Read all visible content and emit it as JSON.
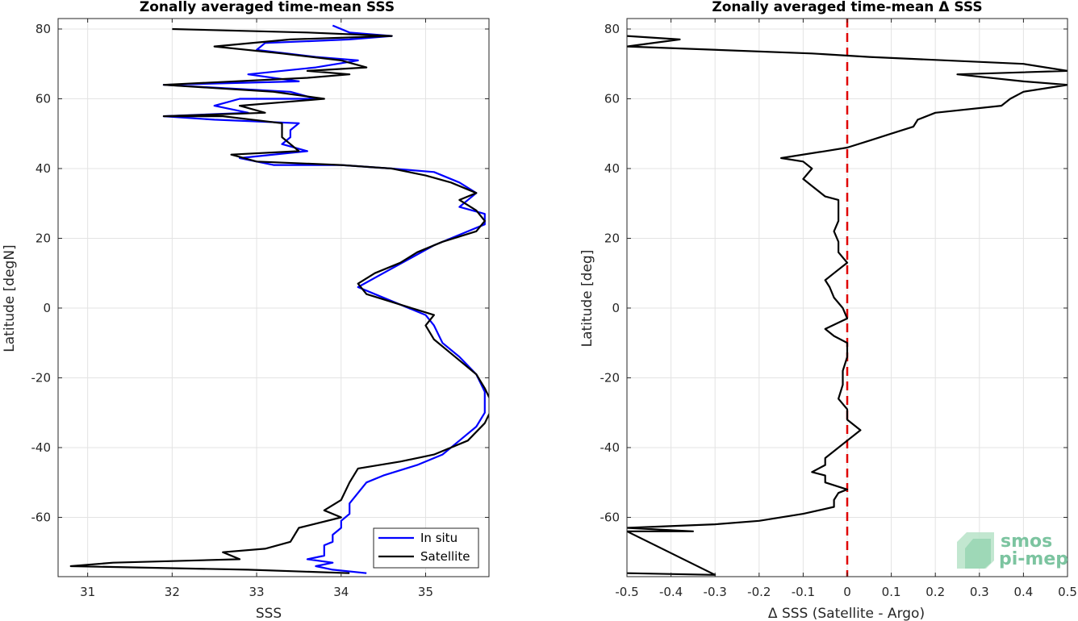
{
  "chart_data": [
    {
      "type": "line",
      "title": "Zonally averaged time-mean SSS",
      "xlabel": "SSS",
      "ylabel": "Latitude [degN]",
      "xlim": [
        30.65,
        35.75
      ],
      "ylim": [
        -77,
        83
      ],
      "xticks": [
        "31",
        "32",
        "33",
        "34",
        "35"
      ],
      "yticks": [
        "80",
        "60",
        "40",
        "20",
        "0",
        "-20",
        "-40",
        "-60"
      ],
      "grid": true,
      "legend_position": "bottom-right",
      "series": [
        {
          "name": "In situ",
          "color": "#0000ff",
          "points": [
            [
              34.3,
              -76
            ],
            [
              33.9,
              -75
            ],
            [
              33.7,
              -74
            ],
            [
              33.9,
              -73
            ],
            [
              33.6,
              -72
            ],
            [
              33.8,
              -71
            ],
            [
              33.8,
              -70
            ],
            [
              33.8,
              -68
            ],
            [
              33.9,
              -67
            ],
            [
              33.9,
              -65
            ],
            [
              34.0,
              -63
            ],
            [
              34.0,
              -61
            ],
            [
              34.1,
              -59
            ],
            [
              34.1,
              -56
            ],
            [
              34.2,
              -53
            ],
            [
              34.3,
              -50
            ],
            [
              34.5,
              -48
            ],
            [
              34.9,
              -45
            ],
            [
              35.2,
              -42
            ],
            [
              35.4,
              -38
            ],
            [
              35.6,
              -34
            ],
            [
              35.7,
              -30
            ],
            [
              35.7,
              -24
            ],
            [
              35.6,
              -19
            ],
            [
              35.4,
              -14
            ],
            [
              35.2,
              -10
            ],
            [
              35.1,
              -5
            ],
            [
              35.0,
              -2
            ],
            [
              34.7,
              1
            ],
            [
              34.4,
              4
            ],
            [
              34.2,
              6
            ],
            [
              34.5,
              10
            ],
            [
              34.8,
              14
            ],
            [
              35.1,
              18
            ],
            [
              35.4,
              21
            ],
            [
              35.7,
              24
            ],
            [
              35.7,
              27
            ],
            [
              35.4,
              29
            ],
            [
              35.6,
              33
            ],
            [
              35.4,
              36
            ],
            [
              35.1,
              39
            ],
            [
              34.6,
              40
            ],
            [
              34.0,
              41
            ],
            [
              33.2,
              41
            ],
            [
              32.8,
              43
            ],
            [
              33.6,
              45
            ],
            [
              33.3,
              47
            ],
            [
              33.4,
              49
            ],
            [
              33.4,
              51
            ],
            [
              33.5,
              53
            ],
            [
              32.5,
              54
            ],
            [
              31.9,
              55
            ],
            [
              32.9,
              56
            ],
            [
              32.5,
              58
            ],
            [
              32.8,
              60
            ],
            [
              33.7,
              60
            ],
            [
              33.4,
              62
            ],
            [
              31.9,
              64
            ],
            [
              33.5,
              65
            ],
            [
              32.9,
              67
            ],
            [
              33.7,
              69
            ],
            [
              34.2,
              71
            ],
            [
              33.7,
              72
            ],
            [
              33.0,
              74
            ],
            [
              33.1,
              76
            ],
            [
              34.1,
              77
            ],
            [
              34.6,
              78
            ],
            [
              34.1,
              79
            ],
            [
              33.9,
              81
            ]
          ]
        },
        {
          "name": "Satellite",
          "color": "#000000",
          "points": [
            [
              34.1,
              -76
            ],
            [
              32.9,
              -75
            ],
            [
              30.8,
              -74
            ],
            [
              31.3,
              -73
            ],
            [
              32.8,
              -72
            ],
            [
              32.6,
              -70
            ],
            [
              33.1,
              -69
            ],
            [
              33.4,
              -67
            ],
            [
              33.5,
              -63
            ],
            [
              34.0,
              -60
            ],
            [
              33.8,
              -58
            ],
            [
              34.0,
              -55
            ],
            [
              34.1,
              -50
            ],
            [
              34.2,
              -46
            ],
            [
              34.7,
              -44
            ],
            [
              35.1,
              -42
            ],
            [
              35.5,
              -38
            ],
            [
              35.7,
              -33
            ],
            [
              35.8,
              -28
            ],
            [
              35.7,
              -23
            ],
            [
              35.6,
              -19
            ],
            [
              35.3,
              -13
            ],
            [
              35.1,
              -9
            ],
            [
              35.0,
              -5
            ],
            [
              35.1,
              -2
            ],
            [
              34.7,
              1
            ],
            [
              34.3,
              4
            ],
            [
              34.2,
              7
            ],
            [
              34.4,
              10
            ],
            [
              34.7,
              13
            ],
            [
              34.9,
              16
            ],
            [
              35.2,
              19
            ],
            [
              35.6,
              22
            ],
            [
              35.7,
              25
            ],
            [
              35.6,
              28
            ],
            [
              35.4,
              31
            ],
            [
              35.6,
              33
            ],
            [
              35.3,
              36
            ],
            [
              35.0,
              38
            ],
            [
              34.6,
              40
            ],
            [
              34.0,
              41
            ],
            [
              33.0,
              42
            ],
            [
              32.7,
              44
            ],
            [
              33.5,
              45
            ],
            [
              33.4,
              47
            ],
            [
              33.3,
              49
            ],
            [
              33.3,
              51
            ],
            [
              33.3,
              53
            ],
            [
              32.6,
              55
            ],
            [
              31.9,
              55
            ],
            [
              33.1,
              56
            ],
            [
              32.8,
              58
            ],
            [
              33.3,
              59
            ],
            [
              33.8,
              60
            ],
            [
              33.2,
              62
            ],
            [
              31.9,
              64
            ],
            [
              33.6,
              66
            ],
            [
              34.1,
              67
            ],
            [
              33.6,
              68
            ],
            [
              34.3,
              69
            ],
            [
              34.0,
              71
            ],
            [
              33.3,
              73
            ],
            [
              32.5,
              75
            ],
            [
              33.4,
              77
            ],
            [
              34.6,
              78
            ],
            [
              33.6,
              79
            ],
            [
              32.0,
              80
            ]
          ]
        }
      ]
    },
    {
      "type": "line",
      "title": "Zonally averaged time-mean Δ SSS",
      "xlabel": "Δ SSS (Satellite - Argo)",
      "ylabel": "Latitude [deg]",
      "xlim": [
        -0.5,
        0.5
      ],
      "ylim": [
        -77,
        83
      ],
      "xticks": [
        "-0.5",
        "-0.4",
        "-0.3",
        "-0.2",
        "-0.1",
        "0",
        "0.1",
        "0.2",
        "0.3",
        "0.4",
        "0.5"
      ],
      "yticks": [
        "80",
        "60",
        "40",
        "20",
        "0",
        "-20",
        "-40",
        "-60"
      ],
      "grid": true,
      "reference_line": {
        "x": 0,
        "color": "#e00000",
        "style": "dashed"
      },
      "series": [
        {
          "color": "#000000",
          "points": [
            [
              -0.5,
              -76
            ],
            [
              -0.3,
              -76.5
            ],
            [
              -0.5,
              -64
            ],
            [
              -0.35,
              -64
            ],
            [
              -0.5,
              -63
            ],
            [
              -0.3,
              -62
            ],
            [
              -0.2,
              -61
            ],
            [
              -0.1,
              -59
            ],
            [
              -0.03,
              -57
            ],
            [
              -0.03,
              -55
            ],
            [
              -0.02,
              -53
            ],
            [
              0.0,
              -52
            ],
            [
              -0.05,
              -50
            ],
            [
              -0.05,
              -48
            ],
            [
              -0.08,
              -47
            ],
            [
              -0.05,
              -45
            ],
            [
              -0.05,
              -43
            ],
            [
              -0.02,
              -40
            ],
            [
              0.0,
              -38
            ],
            [
              0.03,
              -35
            ],
            [
              0.0,
              -32
            ],
            [
              0.0,
              -29
            ],
            [
              -0.02,
              -26
            ],
            [
              -0.01,
              -22
            ],
            [
              -0.01,
              -18
            ],
            [
              0.0,
              -14
            ],
            [
              0.0,
              -10
            ],
            [
              -0.03,
              -8
            ],
            [
              -0.05,
              -6
            ],
            [
              0.0,
              -3
            ],
            [
              -0.01,
              0
            ],
            [
              -0.03,
              3
            ],
            [
              -0.04,
              6
            ],
            [
              -0.05,
              8
            ],
            [
              -0.03,
              10
            ],
            [
              0.0,
              13
            ],
            [
              -0.02,
              16
            ],
            [
              -0.02,
              19
            ],
            [
              -0.03,
              22
            ],
            [
              -0.02,
              25
            ],
            [
              -0.02,
              28
            ],
            [
              -0.02,
              31
            ],
            [
              -0.05,
              32
            ],
            [
              -0.08,
              35
            ],
            [
              -0.1,
              37
            ],
            [
              -0.08,
              40
            ],
            [
              -0.1,
              42
            ],
            [
              -0.15,
              43
            ],
            [
              -0.05,
              45
            ],
            [
              0.0,
              46
            ],
            [
              0.05,
              48
            ],
            [
              0.1,
              50
            ],
            [
              0.15,
              52
            ],
            [
              0.16,
              54
            ],
            [
              0.2,
              56
            ],
            [
              0.35,
              58
            ],
            [
              0.37,
              60
            ],
            [
              0.4,
              62
            ],
            [
              0.5,
              64
            ],
            [
              0.4,
              65
            ],
            [
              0.25,
              67
            ],
            [
              0.5,
              68
            ],
            [
              0.4,
              70
            ],
            [
              0.05,
              72
            ],
            [
              -0.08,
              73
            ],
            [
              -0.5,
              75
            ],
            [
              -0.38,
              77
            ],
            [
              -0.5,
              78
            ]
          ]
        }
      ]
    }
  ],
  "legend": {
    "items": [
      {
        "label": "In situ",
        "color": "#0000ff"
      },
      {
        "label": "Satellite",
        "color": "#000000"
      }
    ]
  },
  "logo": {
    "line1": "smos",
    "line2": "pi-mep"
  }
}
